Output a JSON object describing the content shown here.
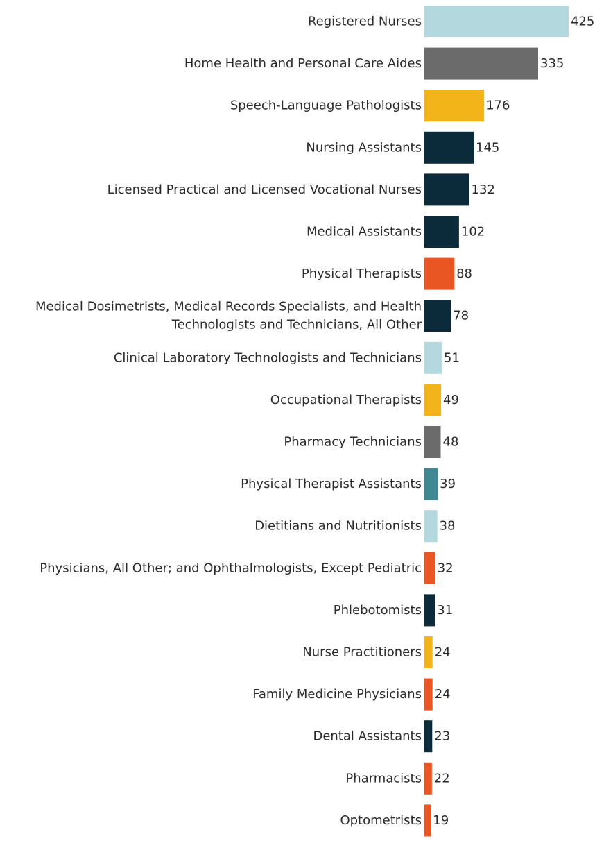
{
  "chart_data": {
    "type": "bar",
    "orientation": "horizontal",
    "title": "",
    "xlabel": "",
    "ylabel": "",
    "grid": false,
    "legend": "none",
    "categories": [
      "Registered Nurses",
      "Home Health and Personal Care Aides",
      "Speech-Language Pathologists",
      "Nursing Assistants",
      "Licensed Practical and Licensed Vocational Nurses",
      "Medical Assistants",
      "Physical Therapists",
      "Medical Dosimetrists, Medical Records Specialists, and Health Technologists and Technicians, All Other",
      "Clinical Laboratory Technologists and Technicians",
      "Occupational Therapists",
      "Pharmacy Technicians",
      "Physical Therapist Assistants",
      "Dietitians and Nutritionists",
      "Physicians, All Other; and Ophthalmologists, Except Pediatric",
      "Phlebotomists",
      "Nurse Practitioners",
      "Family Medicine Physicians",
      "Dental Assistants",
      "Pharmacists",
      "Optometrists"
    ],
    "label_lines": [
      [
        "Registered Nurses"
      ],
      [
        "Home Health and Personal Care Aides"
      ],
      [
        "Speech-Language Pathologists"
      ],
      [
        "Nursing Assistants"
      ],
      [
        "Licensed Practical and Licensed Vocational Nurses"
      ],
      [
        "Medical Assistants"
      ],
      [
        "Physical Therapists"
      ],
      [
        "Medical Dosimetrists, Medical Records Specialists, and Health",
        "Technologists and Technicians, All Other"
      ],
      [
        "Clinical Laboratory Technologists and Technicians"
      ],
      [
        "Occupational Therapists"
      ],
      [
        "Pharmacy Technicians"
      ],
      [
        "Physical Therapist Assistants"
      ],
      [
        "Dietitians and Nutritionists"
      ],
      [
        "Physicians, All Other; and Ophthalmologists, Except Pediatric"
      ],
      [
        "Phlebotomists"
      ],
      [
        "Nurse Practitioners"
      ],
      [
        "Family Medicine Physicians"
      ],
      [
        "Dental Assistants"
      ],
      [
        "Pharmacists"
      ],
      [
        "Optometrists"
      ]
    ],
    "values": [
      425,
      335,
      176,
      145,
      132,
      102,
      88,
      78,
      51,
      49,
      48,
      39,
      38,
      32,
      31,
      24,
      24,
      23,
      22,
      19
    ],
    "colors": [
      "#b3d8dd",
      "#6b6b6b",
      "#f2b418",
      "#0b2a3a",
      "#0b2a3a",
      "#0b2a3a",
      "#ea5524",
      "#0b2a3a",
      "#b3d8dd",
      "#f2b418",
      "#6b6b6b",
      "#3f8791",
      "#b3d8dd",
      "#ea5524",
      "#0b2a3a",
      "#f2b418",
      "#ea5524",
      "#0b2a3a",
      "#ea5524",
      "#ea5524"
    ],
    "xlim": [
      0,
      425
    ]
  }
}
